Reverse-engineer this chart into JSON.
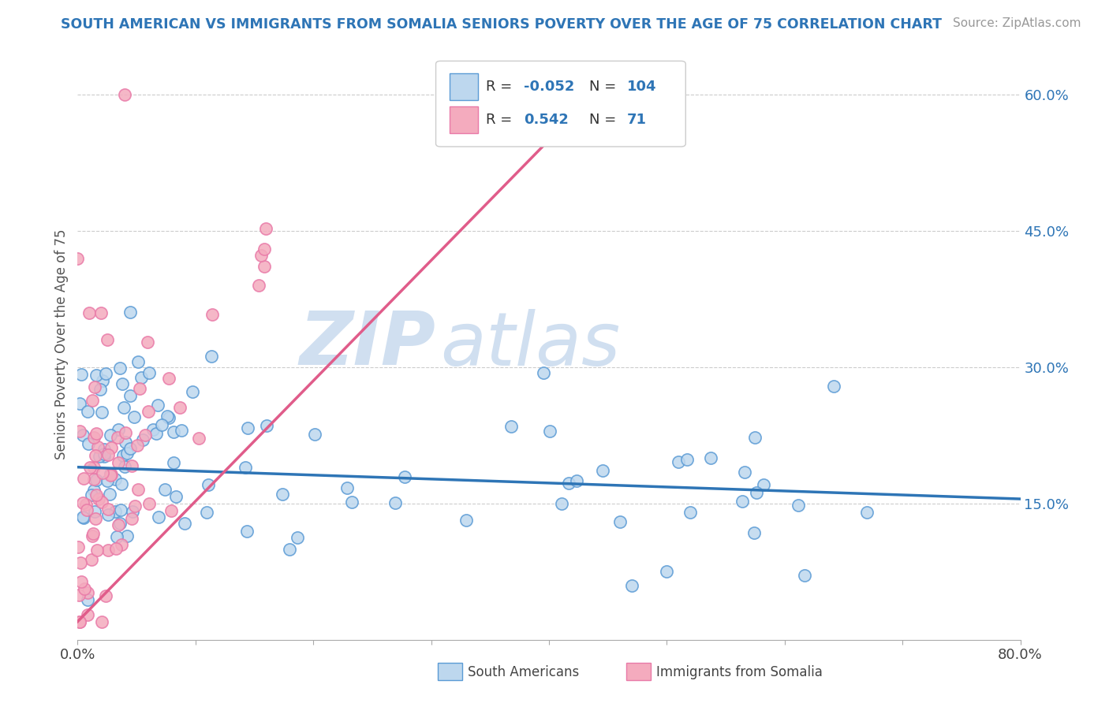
{
  "title": "SOUTH AMERICAN VS IMMIGRANTS FROM SOMALIA SENIORS POVERTY OVER THE AGE OF 75 CORRELATION CHART",
  "source": "Source: ZipAtlas.com",
  "ylabel": "Seniors Poverty Over the Age of 75",
  "xlim": [
    0.0,
    0.8
  ],
  "ylim": [
    0.0,
    0.65
  ],
  "ytick_right_labels": [
    "15.0%",
    "30.0%",
    "45.0%",
    "60.0%"
  ],
  "ytick_right_pos": [
    0.15,
    0.3,
    0.45,
    0.6
  ],
  "blue_fill": "#BDD7EE",
  "pink_fill": "#F4ABBE",
  "blue_edge": "#5B9BD5",
  "pink_edge": "#E97AA8",
  "blue_line": "#2E75B6",
  "pink_line": "#E05C8A",
  "title_color": "#2E75B6",
  "source_color": "#999999",
  "grid_color": "#CCCCCC",
  "watermark_color": "#D0DFF0",
  "legend_r1_val": "-0.052",
  "legend_n1_val": "104",
  "legend_r2_val": "0.542",
  "legend_n2_val": "71",
  "legend_color": "#2E75B6"
}
